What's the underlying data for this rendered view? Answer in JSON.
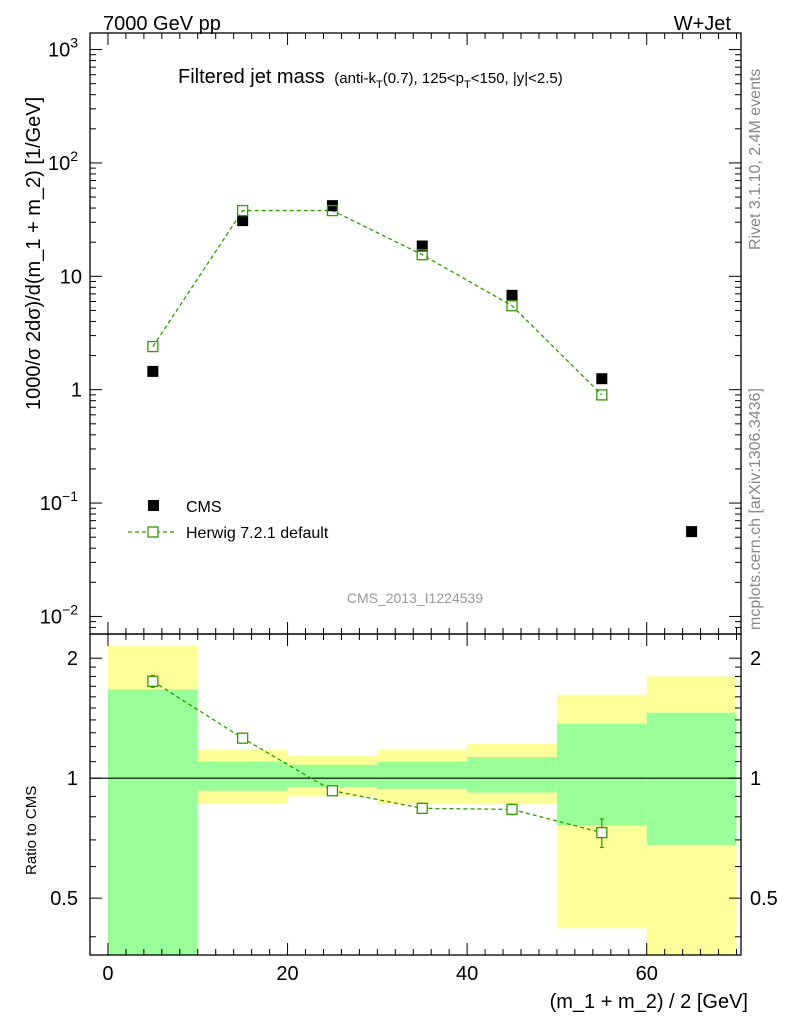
{
  "header": {
    "energy_label": "7000 GeV pp",
    "process_label": "W+Jet"
  },
  "side_labels": {
    "rivet": "Rivet 3.1.10,  2.4M events",
    "mcplots": "mcplots.cern.ch [arXiv:1306.3436]"
  },
  "chart_data": [
    {
      "type": "scatter",
      "panel": "main",
      "title": "Filtered jet mass",
      "title_cuts_parts": {
        "a": "(anti-k",
        "a_sub": "T",
        "b": "(0.7), 125<p",
        "b_sub": "T",
        "c": "<150, |y|<2.5)"
      },
      "watermark": "CMS_2013_I1224539",
      "xlabel": "(m_1 + m_2) / 2 [GeV]",
      "ylabel": "1000/σ 2dσ)/d(m_1 + m_2) [1/GeV]",
      "yscale": "log",
      "xlim": [
        -2,
        70.5
      ],
      "ylim": [
        0.007,
        1400
      ],
      "y_tick_labels": [
        {
          "v": 1000,
          "base": "10",
          "exp": "3"
        },
        {
          "v": 100,
          "base": "10",
          "exp": "2"
        },
        {
          "v": 10,
          "base": "10",
          "exp": ""
        },
        {
          "v": 1,
          "base": "1",
          "exp": ""
        },
        {
          "v": 0.1,
          "base": "10",
          "exp": "−1"
        },
        {
          "v": 0.01,
          "base": "10",
          "exp": "−2"
        }
      ],
      "legend": [
        {
          "name": "CMS",
          "marker": "filled-square",
          "color": "#000000"
        },
        {
          "name": "Herwig 7.2.1 default",
          "marker": "open-square-dashed-line",
          "color": "#339900"
        }
      ],
      "series": [
        {
          "name": "CMS",
          "x": [
            5,
            15,
            25,
            35,
            45,
            55,
            65
          ],
          "y": [
            1.45,
            31,
            42,
            18.5,
            6.8,
            1.25,
            0.056
          ]
        },
        {
          "name": "Herwig 7.2.1 default",
          "x": [
            5,
            15,
            25,
            35,
            45,
            55
          ],
          "y": [
            2.4,
            38,
            38,
            15.5,
            5.5,
            0.9
          ]
        }
      ]
    },
    {
      "type": "ratio",
      "panel": "ratio",
      "ylabel": "Ratio to CMS",
      "xlabel": "(m_1 + m_2) / 2 [GeV]",
      "xlim": [
        -2,
        70.5
      ],
      "ylim": [
        0.36,
        2.3
      ],
      "yscale": "log",
      "y_tick_labels": [
        "0.5",
        "1",
        "2"
      ],
      "x_tick_labels": [
        "0",
        "20",
        "40",
        "60"
      ],
      "bands": [
        {
          "x0": 0,
          "x1": 10,
          "yellow": [
            0.35,
            2.15
          ],
          "green": [
            0.35,
            1.67
          ]
        },
        {
          "x0": 10,
          "x1": 20,
          "yellow": [
            0.86,
            1.18
          ],
          "green": [
            0.93,
            1.1
          ]
        },
        {
          "x0": 20,
          "x1": 30,
          "yellow": [
            0.9,
            1.14
          ],
          "green": [
            0.95,
            1.08
          ]
        },
        {
          "x0": 30,
          "x1": 40,
          "yellow": [
            0.86,
            1.18
          ],
          "green": [
            0.94,
            1.1
          ]
        },
        {
          "x0": 40,
          "x1": 50,
          "yellow": [
            0.86,
            1.22
          ],
          "green": [
            0.92,
            1.13
          ]
        },
        {
          "x0": 50,
          "x1": 60,
          "yellow": [
            0.42,
            1.62
          ],
          "green": [
            0.76,
            1.37
          ]
        },
        {
          "x0": 60,
          "x1": 70,
          "yellow": [
            0.34,
            1.8
          ],
          "green": [
            0.68,
            1.46
          ]
        }
      ],
      "series": [
        {
          "name": "Herwig 7.2.1 default",
          "x": [
            5,
            15,
            25,
            35,
            45,
            55
          ],
          "y": [
            1.75,
            1.26,
            0.93,
            0.84,
            0.835,
            0.73
          ],
          "err_lo": [
            0.06,
            0.02,
            0.01,
            0.01,
            0.025,
            0.06
          ],
          "err_hi": [
            0.06,
            0.02,
            0.01,
            0.01,
            0.025,
            0.06
          ]
        }
      ]
    }
  ],
  "colors": {
    "data": "#000000",
    "mc": "#339900",
    "band_yellow": "#ffff99",
    "band_green": "#99ff99",
    "watermark": "#999999",
    "side_text": "#888888"
  }
}
